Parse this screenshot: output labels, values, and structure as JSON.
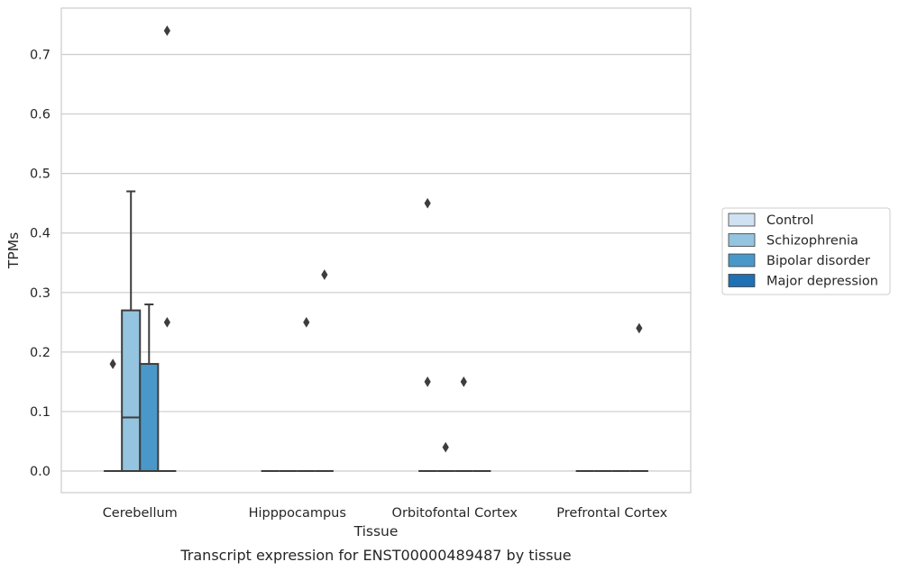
{
  "chart_data": {
    "type": "box",
    "caption": "Transcript expression for ENST00000489487 by tissue",
    "xlabel": "Tissue",
    "ylabel": "TPMs",
    "ylim": [
      -0.036,
      0.775
    ],
    "yticks": [
      0.0,
      0.1,
      0.2,
      0.3,
      0.4,
      0.5,
      0.6,
      0.7
    ],
    "ytick_labels": [
      "0.0",
      "0.1",
      "0.2",
      "0.3",
      "0.4",
      "0.5",
      "0.6",
      "0.7"
    ],
    "grid": "horizontal",
    "legend_position": "right",
    "categories": [
      "Cerebellum",
      "Hipppocampus",
      "Orbitofontal Cortex",
      "Prefrontal Cortex"
    ],
    "series": [
      {
        "name": "Control",
        "color": "#d0e1f2",
        "boxes": [
          {
            "q1": 0.0,
            "median": 0.0,
            "q3": 0.0,
            "whisker_low": 0.0,
            "whisker_high": 0.0,
            "outliers": [
              0.18
            ]
          },
          {
            "q1": 0.0,
            "median": 0.0,
            "q3": 0.0,
            "whisker_low": 0.0,
            "whisker_high": 0.0,
            "outliers": []
          },
          {
            "q1": 0.0,
            "median": 0.0,
            "q3": 0.0,
            "whisker_low": 0.0,
            "whisker_high": 0.0,
            "outliers": [
              0.45,
              0.15
            ]
          },
          {
            "q1": 0.0,
            "median": 0.0,
            "q3": 0.0,
            "whisker_low": 0.0,
            "whisker_high": 0.0,
            "outliers": []
          }
        ]
      },
      {
        "name": "Schizophrenia",
        "color": "#94c4df",
        "boxes": [
          {
            "q1": 0.0,
            "median": 0.09,
            "q3": 0.27,
            "whisker_low": 0.0,
            "whisker_high": 0.47,
            "outliers": []
          },
          {
            "q1": 0.0,
            "median": 0.0,
            "q3": 0.0,
            "whisker_low": 0.0,
            "whisker_high": 0.0,
            "outliers": []
          },
          {
            "q1": 0.0,
            "median": 0.0,
            "q3": 0.0,
            "whisker_low": 0.0,
            "whisker_high": 0.0,
            "outliers": [
              0.04
            ]
          },
          {
            "q1": 0.0,
            "median": 0.0,
            "q3": 0.0,
            "whisker_low": 0.0,
            "whisker_high": 0.0,
            "outliers": []
          }
        ]
      },
      {
        "name": "Bipolar disorder",
        "color": "#4a98c9",
        "boxes": [
          {
            "q1": 0.0,
            "median": 0.0,
            "q3": 0.18,
            "whisker_low": 0.0,
            "whisker_high": 0.28,
            "outliers": []
          },
          {
            "q1": 0.0,
            "median": 0.0,
            "q3": 0.0,
            "whisker_low": 0.0,
            "whisker_high": 0.0,
            "outliers": [
              0.25
            ]
          },
          {
            "q1": 0.0,
            "median": 0.0,
            "q3": 0.0,
            "whisker_low": 0.0,
            "whisker_high": 0.0,
            "outliers": [
              0.15
            ]
          },
          {
            "q1": 0.0,
            "median": 0.0,
            "q3": 0.0,
            "whisker_low": 0.0,
            "whisker_high": 0.0,
            "outliers": []
          }
        ]
      },
      {
        "name": "Major depression",
        "color": "#2070b4",
        "boxes": [
          {
            "q1": 0.0,
            "median": 0.0,
            "q3": 0.0,
            "whisker_low": 0.0,
            "whisker_high": 0.0,
            "outliers": [
              0.74,
              0.25
            ]
          },
          {
            "q1": 0.0,
            "median": 0.0,
            "q3": 0.0,
            "whisker_low": 0.0,
            "whisker_high": 0.0,
            "outliers": [
              0.33
            ]
          },
          {
            "q1": 0.0,
            "median": 0.0,
            "q3": 0.0,
            "whisker_low": 0.0,
            "whisker_high": 0.0,
            "outliers": []
          },
          {
            "q1": 0.0,
            "median": 0.0,
            "q3": 0.0,
            "whisker_low": 0.0,
            "whisker_high": 0.0,
            "outliers": [
              0.24
            ]
          }
        ]
      }
    ]
  }
}
